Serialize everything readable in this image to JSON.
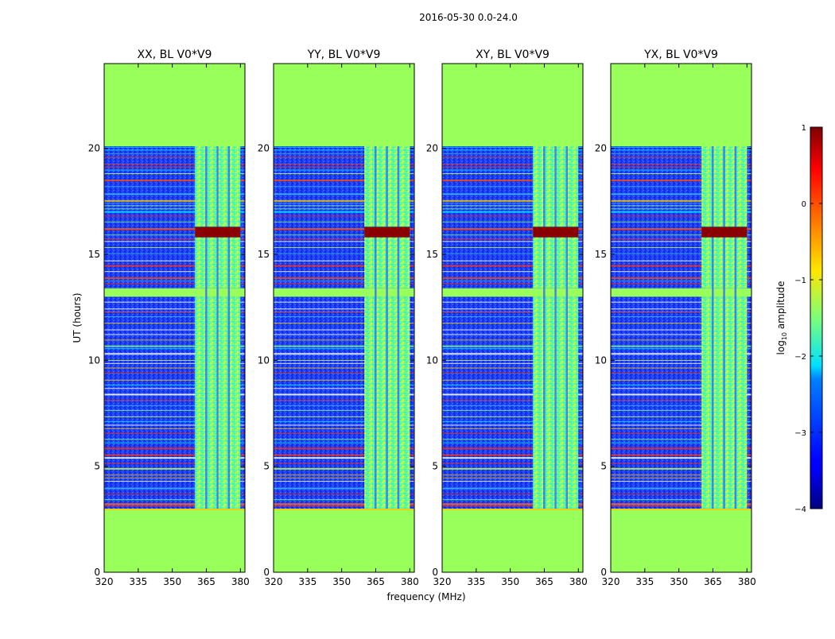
{
  "suptitle": "2016-05-30 0.0-24.0",
  "chart_data": [
    {
      "type": "heatmap",
      "title": "XX, BL V0*V9",
      "xlabel": "",
      "ylabel": "UT (hours)",
      "xlim": [
        320,
        382
      ],
      "ylim": [
        0,
        24
      ],
      "x_ticks": [
        320,
        335,
        350,
        365,
        380
      ],
      "y_ticks": [
        0,
        5,
        10,
        15,
        20
      ],
      "observed_hours": [
        3.0,
        20.1
      ],
      "flagged_hours": [
        13.0,
        13.4
      ],
      "band_mhz": [
        360,
        380
      ],
      "strong_rfi_hours": [
        15.8,
        16.3
      ]
    },
    {
      "type": "heatmap",
      "title": "YY, BL V0*V9",
      "xlabel": "frequency (MHz)",
      "ylabel": "",
      "xlim": [
        320,
        382
      ],
      "ylim": [
        0,
        24
      ],
      "x_ticks": [
        320,
        335,
        350,
        365,
        380
      ],
      "y_ticks": [
        0,
        5,
        10,
        15,
        20
      ],
      "observed_hours": [
        3.0,
        20.1
      ],
      "flagged_hours": [
        13.0,
        13.4
      ],
      "band_mhz": [
        360,
        380
      ],
      "strong_rfi_hours": [
        15.8,
        16.3
      ]
    },
    {
      "type": "heatmap",
      "title": "XY, BL V0*V9",
      "xlabel": "",
      "ylabel": "",
      "xlim": [
        320,
        382
      ],
      "ylim": [
        0,
        24
      ],
      "x_ticks": [
        320,
        335,
        350,
        365,
        380
      ],
      "y_ticks": [
        0,
        5,
        10,
        15,
        20
      ],
      "observed_hours": [
        3.0,
        20.1
      ],
      "flagged_hours": [
        13.0,
        13.4
      ],
      "band_mhz": [
        360,
        380
      ],
      "strong_rfi_hours": [
        15.8,
        16.3
      ]
    },
    {
      "type": "heatmap",
      "title": "YX, BL V0*V9",
      "xlabel": "",
      "ylabel": "",
      "xlim": [
        320,
        382
      ],
      "ylim": [
        0,
        24
      ],
      "x_ticks": [
        320,
        335,
        350,
        365,
        380
      ],
      "y_ticks": [
        0,
        5,
        10,
        15,
        20
      ],
      "observed_hours": [
        3.0,
        20.1
      ],
      "flagged_hours": [
        13.0,
        13.4
      ],
      "band_mhz": [
        360,
        380
      ],
      "strong_rfi_hours": [
        15.8,
        16.3
      ]
    }
  ],
  "colorbar": {
    "label_prefix": "log",
    "label_sub": "10",
    "label_suffix": " amplitude",
    "ticks": [
      1,
      0,
      -1,
      -2,
      -3,
      -4
    ],
    "tick_labels": [
      "1",
      "0",
      "−1",
      "−2",
      "−3",
      "−4"
    ],
    "range": [
      -4,
      1
    ]
  }
}
